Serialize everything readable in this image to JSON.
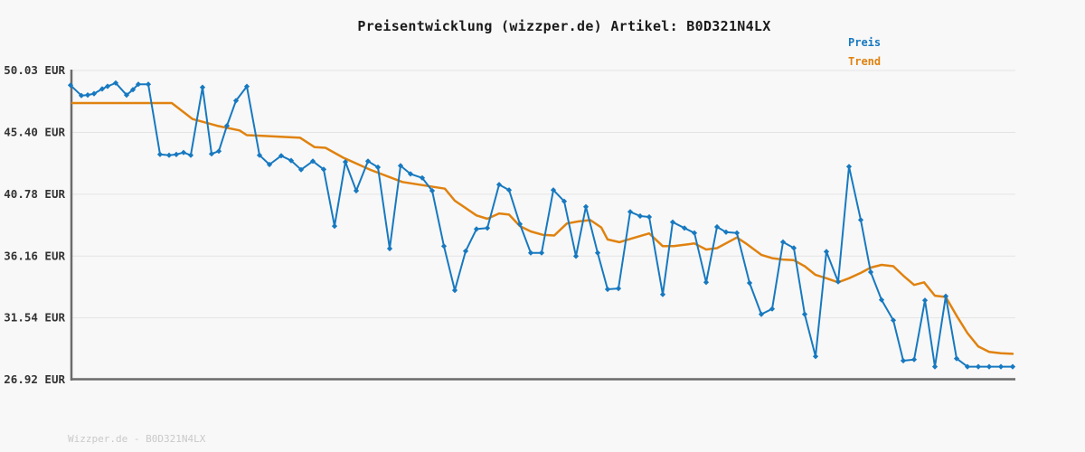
{
  "title": "Preisentwicklung (wizzper.de) Artikel: B0D321N4LX",
  "legend": {
    "preis_label": "Preis",
    "trend_label": "Trend"
  },
  "watermark": "Wizzper.de - B0D321N4LX",
  "colors": {
    "preis": "#1779c0",
    "trend": "#e0820f",
    "grid": "#e4e4e4",
    "axis": "#6b6b6b",
    "background": "#f8f8f8",
    "title_text": "#1a1a1a",
    "tick_text": "#333333",
    "watermark_text": "#c9c9c9"
  },
  "chart_data": {
    "type": "line",
    "title": "Preisentwicklung (wizzper.de) Artikel: B0D321N4LX",
    "xlabel": "",
    "ylabel": "",
    "grid": true,
    "legend_position": "top-right",
    "x_axis": {
      "tick_labels_visible": false,
      "unit": "px"
    },
    "y_axis": {
      "unit": "EUR",
      "range": [
        26.92,
        50.03
      ],
      "ticks": [
        {
          "value": 50.03,
          "label": "50.03 EUR"
        },
        {
          "value": 45.4,
          "label": "45.40 EUR"
        },
        {
          "value": 40.78,
          "label": "40.78 EUR"
        },
        {
          "value": 36.16,
          "label": "36.16 EUR"
        },
        {
          "value": 31.54,
          "label": "31.54 EUR"
        },
        {
          "value": 26.92,
          "label": "26.92 EUR"
        }
      ]
    },
    "series": [
      {
        "name": "Preis",
        "color": "#1779c0",
        "marker": "diamond",
        "points_format": "[x_px, value_eur]",
        "points": [
          [
            78,
            48.93
          ],
          [
            90,
            48.16
          ],
          [
            97,
            48.2
          ],
          [
            104,
            48.3
          ],
          [
            113,
            48.65
          ],
          [
            119,
            48.85
          ],
          [
            128,
            49.1
          ],
          [
            140,
            48.2
          ],
          [
            147,
            48.6
          ],
          [
            153,
            49.0
          ],
          [
            164,
            49.0
          ],
          [
            177,
            43.76
          ],
          [
            187,
            43.7
          ],
          [
            195,
            43.75
          ],
          [
            203,
            43.9
          ],
          [
            211,
            43.7
          ],
          [
            224,
            48.77
          ],
          [
            234,
            43.8
          ],
          [
            242,
            44.0
          ],
          [
            251,
            45.9
          ],
          [
            261,
            47.77
          ],
          [
            273,
            48.84
          ],
          [
            287,
            43.7
          ],
          [
            298,
            43.0
          ],
          [
            311,
            43.66
          ],
          [
            322,
            43.3
          ],
          [
            333,
            42.62
          ],
          [
            346,
            43.25
          ],
          [
            358,
            42.64
          ],
          [
            370,
            38.4
          ],
          [
            382,
            43.2
          ],
          [
            394,
            41.04
          ],
          [
            407,
            43.25
          ],
          [
            418,
            42.8
          ],
          [
            431,
            36.72
          ],
          [
            443,
            42.91
          ],
          [
            454,
            42.3
          ],
          [
            467,
            42.0
          ],
          [
            478,
            41.04
          ],
          [
            491,
            36.9
          ],
          [
            503,
            33.6
          ],
          [
            515,
            36.53
          ],
          [
            527,
            38.18
          ],
          [
            539,
            38.25
          ],
          [
            552,
            41.5
          ],
          [
            563,
            41.1
          ],
          [
            575,
            38.55
          ],
          [
            587,
            36.4
          ],
          [
            599,
            36.4
          ],
          [
            612,
            41.1
          ],
          [
            624,
            40.25
          ],
          [
            637,
            36.15
          ],
          [
            648,
            39.85
          ],
          [
            661,
            36.4
          ],
          [
            672,
            33.68
          ],
          [
            684,
            33.74
          ],
          [
            697,
            39.47
          ],
          [
            708,
            39.15
          ],
          [
            718,
            39.08
          ],
          [
            733,
            33.29
          ],
          [
            744,
            38.7
          ],
          [
            757,
            38.25
          ],
          [
            768,
            37.89
          ],
          [
            781,
            34.2
          ],
          [
            793,
            38.34
          ],
          [
            803,
            37.95
          ],
          [
            815,
            37.89
          ],
          [
            829,
            34.15
          ],
          [
            842,
            31.81
          ],
          [
            854,
            32.21
          ],
          [
            866,
            37.21
          ],
          [
            878,
            36.76
          ],
          [
            890,
            31.81
          ],
          [
            902,
            28.66
          ],
          [
            914,
            36.49
          ],
          [
            927,
            34.24
          ],
          [
            939,
            42.85
          ],
          [
            952,
            38.86
          ],
          [
            963,
            34.96
          ],
          [
            975,
            32.89
          ],
          [
            988,
            31.36
          ],
          [
            999,
            28.34
          ],
          [
            1011,
            28.43
          ],
          [
            1023,
            32.85
          ],
          [
            1034,
            27.89
          ],
          [
            1046,
            33.16
          ],
          [
            1058,
            28.5
          ],
          [
            1070,
            27.89
          ],
          [
            1082,
            27.89
          ],
          [
            1094,
            27.89
          ],
          [
            1107,
            27.89
          ],
          [
            1120,
            27.89
          ]
        ]
      },
      {
        "name": "Trend",
        "color": "#e0820f",
        "marker": "none",
        "points_format": "[x_px, value_eur]",
        "points": [
          [
            80,
            47.6
          ],
          [
            190,
            47.6
          ],
          [
            213,
            46.4
          ],
          [
            240,
            45.9
          ],
          [
            265,
            45.55
          ],
          [
            273,
            45.2
          ],
          [
            290,
            45.15
          ],
          [
            332,
            45.0
          ],
          [
            348,
            44.3
          ],
          [
            360,
            44.25
          ],
          [
            380,
            43.5
          ],
          [
            410,
            42.6
          ],
          [
            445,
            41.7
          ],
          [
            492,
            41.2
          ],
          [
            503,
            40.3
          ],
          [
            527,
            39.2
          ],
          [
            539,
            38.95
          ],
          [
            552,
            39.35
          ],
          [
            563,
            39.26
          ],
          [
            575,
            38.4
          ],
          [
            587,
            38.0
          ],
          [
            600,
            37.75
          ],
          [
            613,
            37.7
          ],
          [
            627,
            38.6
          ],
          [
            640,
            38.75
          ],
          [
            653,
            38.85
          ],
          [
            665,
            38.3
          ],
          [
            672,
            37.4
          ],
          [
            685,
            37.2
          ],
          [
            700,
            37.5
          ],
          [
            718,
            37.85
          ],
          [
            733,
            36.9
          ],
          [
            745,
            36.9
          ],
          [
            757,
            37.0
          ],
          [
            768,
            37.1
          ],
          [
            781,
            36.65
          ],
          [
            793,
            36.75
          ],
          [
            815,
            37.55
          ],
          [
            825,
            37.1
          ],
          [
            842,
            36.25
          ],
          [
            854,
            36.0
          ],
          [
            866,
            35.9
          ],
          [
            878,
            35.85
          ],
          [
            890,
            35.4
          ],
          [
            902,
            34.75
          ],
          [
            914,
            34.5
          ],
          [
            927,
            34.2
          ],
          [
            939,
            34.5
          ],
          [
            952,
            34.9
          ],
          [
            963,
            35.3
          ],
          [
            975,
            35.5
          ],
          [
            988,
            35.4
          ],
          [
            999,
            34.7
          ],
          [
            1011,
            34.0
          ],
          [
            1022,
            34.2
          ],
          [
            1034,
            33.2
          ],
          [
            1046,
            33.1
          ],
          [
            1058,
            31.7
          ],
          [
            1070,
            30.4
          ],
          [
            1082,
            29.4
          ],
          [
            1094,
            29.0
          ],
          [
            1107,
            28.9
          ],
          [
            1120,
            28.85
          ]
        ]
      }
    ]
  }
}
